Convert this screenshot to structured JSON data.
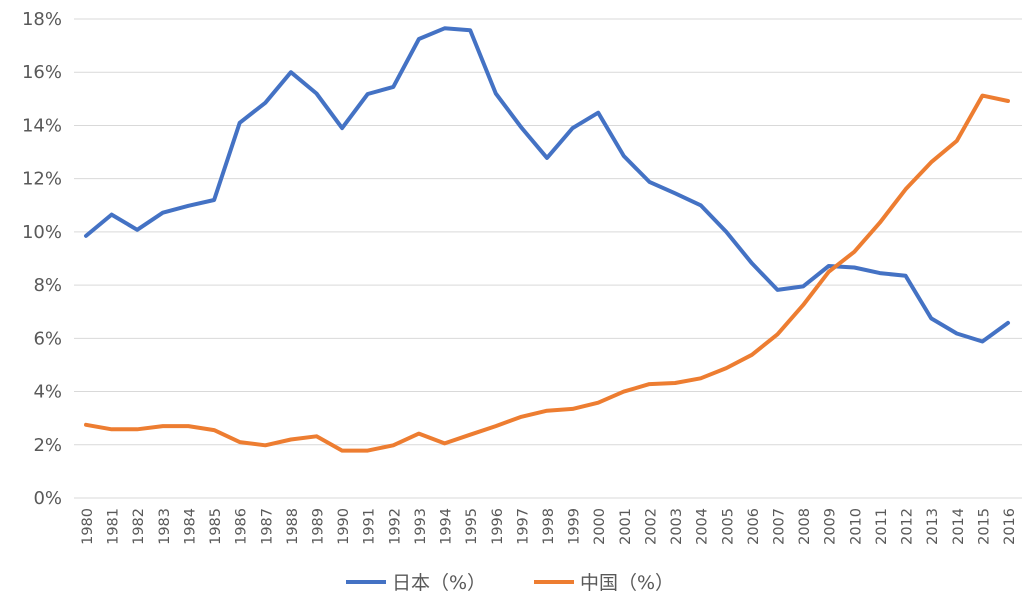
{
  "chart_data": {
    "type": "line",
    "title": "",
    "xlabel": "",
    "ylabel": "",
    "ylim": [
      0,
      18
    ],
    "y_unit": "%",
    "y_ticks": [
      "0%",
      "2%",
      "4%",
      "6%",
      "8%",
      "10%",
      "12%",
      "14%",
      "16%",
      "18%"
    ],
    "grid": true,
    "legend_position": "bottom",
    "x": [
      "1980",
      "1981",
      "1982",
      "1983",
      "1984",
      "1985",
      "1986",
      "1987",
      "1988",
      "1989",
      "1990",
      "1991",
      "1992",
      "1993",
      "1994",
      "1995",
      "1996",
      "1997",
      "1998",
      "1999",
      "2000",
      "2001",
      "2002",
      "2003",
      "2004",
      "2005",
      "2006",
      "2007",
      "2008",
      "2009",
      "2010",
      "2011",
      "2012",
      "2013",
      "2014",
      "2015",
      "2016"
    ],
    "series": [
      {
        "name": "日本（%）",
        "color": "#4472C4",
        "values": [
          9.85,
          10.65,
          10.08,
          10.72,
          10.98,
          11.2,
          14.1,
          14.85,
          16.0,
          15.2,
          13.9,
          15.18,
          15.45,
          17.25,
          17.65,
          17.58,
          15.2,
          13.92,
          12.78,
          13.9,
          14.48,
          12.85,
          11.88,
          11.45,
          11.0,
          10.0,
          8.82,
          7.82,
          7.95,
          8.72,
          8.66,
          8.45,
          8.35,
          6.75,
          6.18,
          5.88,
          6.58
        ]
      },
      {
        "name": "中国（%）",
        "color": "#ED7D31",
        "values": [
          2.75,
          2.58,
          2.58,
          2.7,
          2.7,
          2.55,
          2.1,
          1.98,
          2.2,
          2.32,
          1.78,
          1.78,
          1.98,
          2.42,
          2.05,
          2.38,
          2.7,
          3.05,
          3.28,
          3.35,
          3.58,
          4.0,
          4.28,
          4.32,
          4.5,
          4.88,
          5.38,
          6.15,
          7.25,
          8.5,
          9.25,
          10.35,
          11.6,
          12.62,
          13.42,
          15.12,
          14.92
        ]
      }
    ]
  }
}
